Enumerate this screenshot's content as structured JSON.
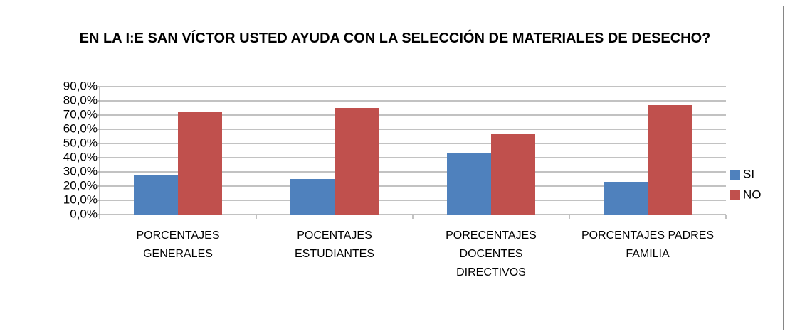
{
  "chart_data": {
    "type": "bar",
    "title": "EN LA I:E SAN VÍCTOR USTED AYUDA CON LA SELECCIÓN DE MATERIALES DE DESECHO?",
    "categories": [
      "PORCENTAJES GENERALES",
      "POCENTAJES ESTUDIANTES",
      "PORECENTAJES DOCENTES DIRECTIVOS",
      "PORCENTAJES PADRES FAMILIA"
    ],
    "series": [
      {
        "name": "SI",
        "color": "#4f81bd",
        "values": [
          27.5,
          25,
          43,
          23
        ]
      },
      {
        "name": "NO",
        "color": "#c0504d",
        "values": [
          72.5,
          75,
          57,
          77
        ]
      }
    ],
    "ylim": [
      0,
      90
    ],
    "yticks": [
      {
        "value": 0,
        "label": "0,0%"
      },
      {
        "value": 10,
        "label": "10,0%"
      },
      {
        "value": 20,
        "label": "20,0%"
      },
      {
        "value": 30,
        "label": "30,0%"
      },
      {
        "value": 40,
        "label": "40,0%"
      },
      {
        "value": 50,
        "label": "50,0%"
      },
      {
        "value": 60,
        "label": "60,0%"
      },
      {
        "value": 70,
        "label": "70,0%"
      },
      {
        "value": 80,
        "label": "80,0%"
      },
      {
        "value": 90,
        "label": "90,0%"
      }
    ],
    "grid": true,
    "legend": "right"
  }
}
